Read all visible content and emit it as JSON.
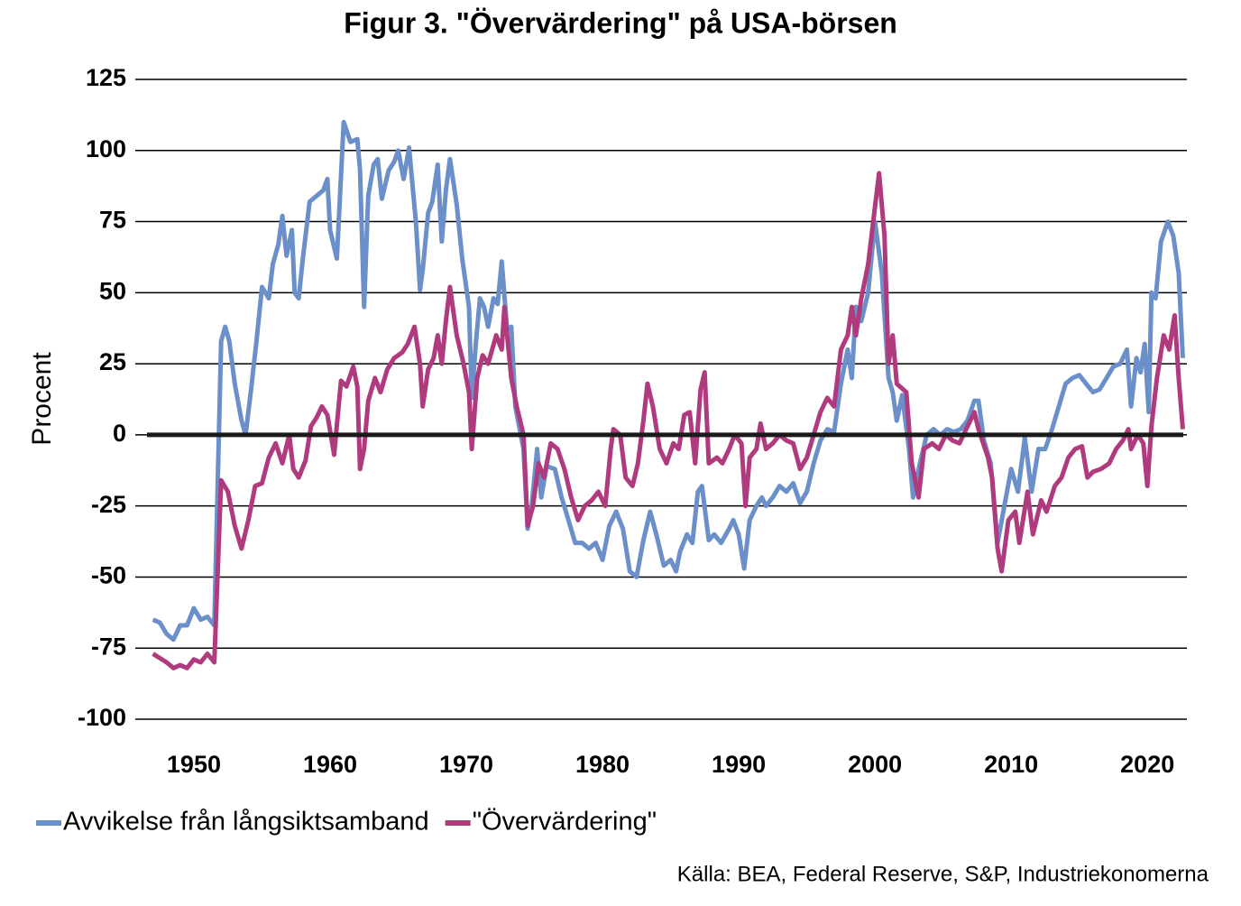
{
  "chart_data": {
    "type": "line",
    "title": "Figur 3. \"Övervärdering\" på USA-börsen",
    "ylabel": "Procent",
    "source": "Källa: BEA, Federal Reserve, S&P, Industriekonomerna",
    "xlim": [
      1945.7,
      2022.9
    ],
    "xticks": [
      1950,
      1960,
      1970,
      1980,
      1990,
      2000,
      2010,
      2020
    ],
    "ylim": [
      -100,
      125
    ],
    "yticks": [
      -100,
      -75,
      -50,
      -25,
      0,
      25,
      50,
      75,
      100,
      125
    ],
    "grid": true,
    "zero_line": true,
    "legend": "bottom-left",
    "series": [
      {
        "name": "Avvikelse från långsiktsamband",
        "color": "#6b8fc9",
        "x": [
          1947,
          1947.5,
          1948,
          1948.5,
          1949,
          1949.5,
          1950,
          1950.5,
          1951,
          1951.5,
          1952,
          1952.3,
          1952.6,
          1953,
          1953.5,
          1953.8,
          1954.2,
          1954.6,
          1955,
          1955.5,
          1955.8,
          1956.2,
          1956.5,
          1956.8,
          1957.2,
          1957.4,
          1957.7,
          1958,
          1958.5,
          1959,
          1959.5,
          1959.8,
          1960,
          1960.5,
          1961,
          1961.5,
          1962,
          1962.2,
          1962.5,
          1962.8,
          1963.2,
          1963.5,
          1963.8,
          1964.3,
          1964.7,
          1965,
          1965.4,
          1965.8,
          1966.3,
          1966.6,
          1966.8,
          1967.2,
          1967.5,
          1967.9,
          1968.2,
          1968.5,
          1968.8,
          1969.3,
          1969.7,
          1970.2,
          1970.4,
          1970.7,
          1971,
          1971.3,
          1971.6,
          1972,
          1972.3,
          1972.6,
          1973,
          1973.3,
          1973.6,
          1974.2,
          1974.5,
          1974.8,
          1975.2,
          1975.5,
          1975.9,
          1976.5,
          1977,
          1977.5,
          1978,
          1978.5,
          1979,
          1979.5,
          1980,
          1980.5,
          1981,
          1981.5,
          1982,
          1982.5,
          1983,
          1983.5,
          1984,
          1984.5,
          1985,
          1985.4,
          1985.7,
          1986.2,
          1986.6,
          1987,
          1987.3,
          1987.8,
          1988.2,
          1988.7,
          1989.3,
          1989.6,
          1990,
          1990.4,
          1990.8,
          1991.3,
          1991.7,
          1992,
          1992.5,
          1993,
          1993.5,
          1994,
          1994.5,
          1995,
          1995.5,
          1996,
          1996.5,
          1997,
          1997.5,
          1998,
          1998.3,
          1998.6,
          1999,
          1999.5,
          2000,
          2000.5,
          2001,
          2001.3,
          2001.6,
          2002,
          2002.5,
          2002.8,
          2003.3,
          2003.8,
          2004.3,
          2004.8,
          2005.3,
          2005.8,
          2006.3,
          2006.8,
          2007.3,
          2007.6,
          2008,
          2008.5,
          2009,
          2009.5,
          2010,
          2010.5,
          2011,
          2011.5,
          2012,
          2012.5,
          2013,
          2013.5,
          2014,
          2014.5,
          2015,
          2015.5,
          2016,
          2016.5,
          2017,
          2017.5,
          2018,
          2018.5,
          2018.8,
          2019.2,
          2019.5,
          2019.8,
          2020.1,
          2020.3,
          2020.6,
          2021,
          2021.5,
          2021.9,
          2022.3,
          2022.6
        ],
        "values": [
          -65,
          -66,
          -70,
          -72,
          -67,
          -67,
          -61,
          -65,
          -64,
          -67,
          33,
          38,
          33,
          18,
          5,
          0,
          16,
          33,
          52,
          48,
          60,
          67,
          77,
          63,
          72,
          50,
          48,
          62,
          82,
          84,
          86,
          90,
          72,
          62,
          110,
          103,
          104,
          93,
          45,
          84,
          95,
          97,
          83,
          93,
          96,
          100,
          90,
          101,
          75,
          51,
          58,
          78,
          82,
          95,
          68,
          86,
          97,
          81,
          62,
          45,
          13,
          32,
          48,
          45,
          38,
          48,
          46,
          61,
          37,
          38,
          10,
          -5,
          -33,
          -25,
          -5,
          -22,
          -11,
          -12,
          -22,
          -30,
          -38,
          -38,
          -40,
          -38,
          -44,
          -32,
          -27,
          -33,
          -48,
          -50,
          -37,
          -27,
          -36,
          -46,
          -44,
          -48,
          -41,
          -35,
          -38,
          -20,
          -18,
          -37,
          -35,
          -38,
          -33,
          -30,
          -35,
          -47,
          -30,
          -25,
          -22,
          -25,
          -22,
          -18,
          -20,
          -17,
          -24,
          -20,
          -10,
          -2,
          2,
          1,
          18,
          30,
          20,
          45,
          40,
          50,
          75,
          57,
          20,
          15,
          5,
          14,
          -5,
          -22,
          -10,
          0,
          2,
          0,
          2,
          1,
          2,
          5,
          12,
          12,
          -2,
          -10,
          -38,
          -25,
          -12,
          -20,
          -1,
          -20,
          -5,
          -5,
          2,
          10,
          18,
          20,
          21,
          18,
          15,
          16,
          20,
          24,
          25,
          30,
          10,
          27,
          22,
          32,
          8,
          50,
          48,
          68,
          75,
          70,
          57,
          27
        ]
      },
      {
        "name": "\"Övervärdering\"",
        "color": "#b03a7e",
        "x": [
          1947,
          1948,
          1948.5,
          1949,
          1949.5,
          1950,
          1950.5,
          1951,
          1951.5,
          1952,
          1952.5,
          1953,
          1953.5,
          1954,
          1954.5,
          1955,
          1955.5,
          1956,
          1956.5,
          1957,
          1957.3,
          1957.7,
          1958.2,
          1958.6,
          1959,
          1959.4,
          1959.8,
          1960.3,
          1960.8,
          1961.2,
          1961.7,
          1962,
          1962.2,
          1962.5,
          1962.8,
          1963.3,
          1963.7,
          1964.2,
          1964.7,
          1965.3,
          1965.7,
          1966.2,
          1966.6,
          1966.8,
          1967.2,
          1967.6,
          1967.9,
          1968.2,
          1968.5,
          1968.8,
          1969.3,
          1969.8,
          1970.2,
          1970.4,
          1970.8,
          1971.2,
          1971.6,
          1972.2,
          1972.6,
          1972.8,
          1973.3,
          1973.7,
          1974.2,
          1974.5,
          1974.9,
          1975.3,
          1975.7,
          1976.2,
          1976.7,
          1977.2,
          1977.7,
          1978.2,
          1978.7,
          1979.2,
          1979.7,
          1980.2,
          1980.6,
          1980.8,
          1981.3,
          1981.7,
          1982.2,
          1982.6,
          1983,
          1983.3,
          1983.7,
          1984.2,
          1984.7,
          1985.2,
          1985.6,
          1986,
          1986.4,
          1986.8,
          1987.2,
          1987.5,
          1987.8,
          1988.4,
          1988.8,
          1989.3,
          1989.7,
          1990.2,
          1990.5,
          1990.8,
          1991.3,
          1991.6,
          1992,
          1992.5,
          1993,
          1993.5,
          1994,
          1994.5,
          1995,
          1995.5,
          1996,
          1996.5,
          1997,
          1997.5,
          1998,
          1998.3,
          1998.6,
          1999,
          1999.5,
          2000,
          2000.3,
          2000.7,
          2001,
          2001.3,
          2001.6,
          2002.3,
          2002.7,
          2003.2,
          2003.6,
          2004.2,
          2004.7,
          2005.2,
          2005.7,
          2006.2,
          2006.7,
          2007.3,
          2007.6,
          2008.3,
          2008.6,
          2009,
          2009.3,
          2009.8,
          2010.3,
          2010.6,
          2011.2,
          2011.6,
          2012.2,
          2012.6,
          2013.2,
          2013.7,
          2014.2,
          2014.7,
          2015.2,
          2015.6,
          2016,
          2016.6,
          2017.2,
          2017.7,
          2018.2,
          2018.6,
          2018.8,
          2019.3,
          2019.7,
          2020,
          2020.3,
          2020.7,
          2021.2,
          2021.6,
          2022,
          2022.3,
          2022.6
        ],
        "values": [
          -77,
          -80,
          -82,
          -81,
          -82,
          -79,
          -80,
          -77,
          -80,
          -16,
          -20,
          -32,
          -40,
          -30,
          -18,
          -17,
          -8,
          -3,
          -10,
          0,
          -12,
          -15,
          -9,
          3,
          6,
          10,
          7,
          -7,
          19,
          17,
          24,
          17,
          -12,
          -5,
          12,
          20,
          15,
          23,
          27,
          29,
          32,
          38,
          25,
          10,
          23,
          27,
          35,
          25,
          40,
          52,
          35,
          25,
          15,
          -5,
          20,
          28,
          25,
          35,
          30,
          45,
          20,
          10,
          0,
          -32,
          -25,
          -10,
          -15,
          -3,
          -5,
          -12,
          -22,
          -30,
          -25,
          -23,
          -20,
          -25,
          -5,
          2,
          0,
          -15,
          -18,
          -10,
          5,
          18,
          10,
          -5,
          -10,
          -3,
          -5,
          7,
          8,
          -10,
          16,
          22,
          -10,
          -8,
          -10,
          -5,
          0,
          -3,
          -25,
          -8,
          -5,
          4,
          -5,
          -3,
          0,
          -2,
          -3,
          -12,
          -8,
          0,
          8,
          13,
          10,
          30,
          35,
          45,
          35,
          48,
          60,
          80,
          92,
          70,
          25,
          35,
          18,
          15,
          -10,
          -22,
          -5,
          -3,
          -5,
          0,
          -2,
          -3,
          2,
          8,
          2,
          -8,
          -15,
          -40,
          -48,
          -30,
          -27,
          -38,
          -20,
          -35,
          -23,
          -27,
          -18,
          -15,
          -8,
          -5,
          -4,
          -15,
          -13,
          -12,
          -10,
          -5,
          -2,
          2,
          -5,
          0,
          -3,
          -18,
          3,
          20,
          35,
          30,
          42,
          20,
          2
        ]
      }
    ]
  }
}
